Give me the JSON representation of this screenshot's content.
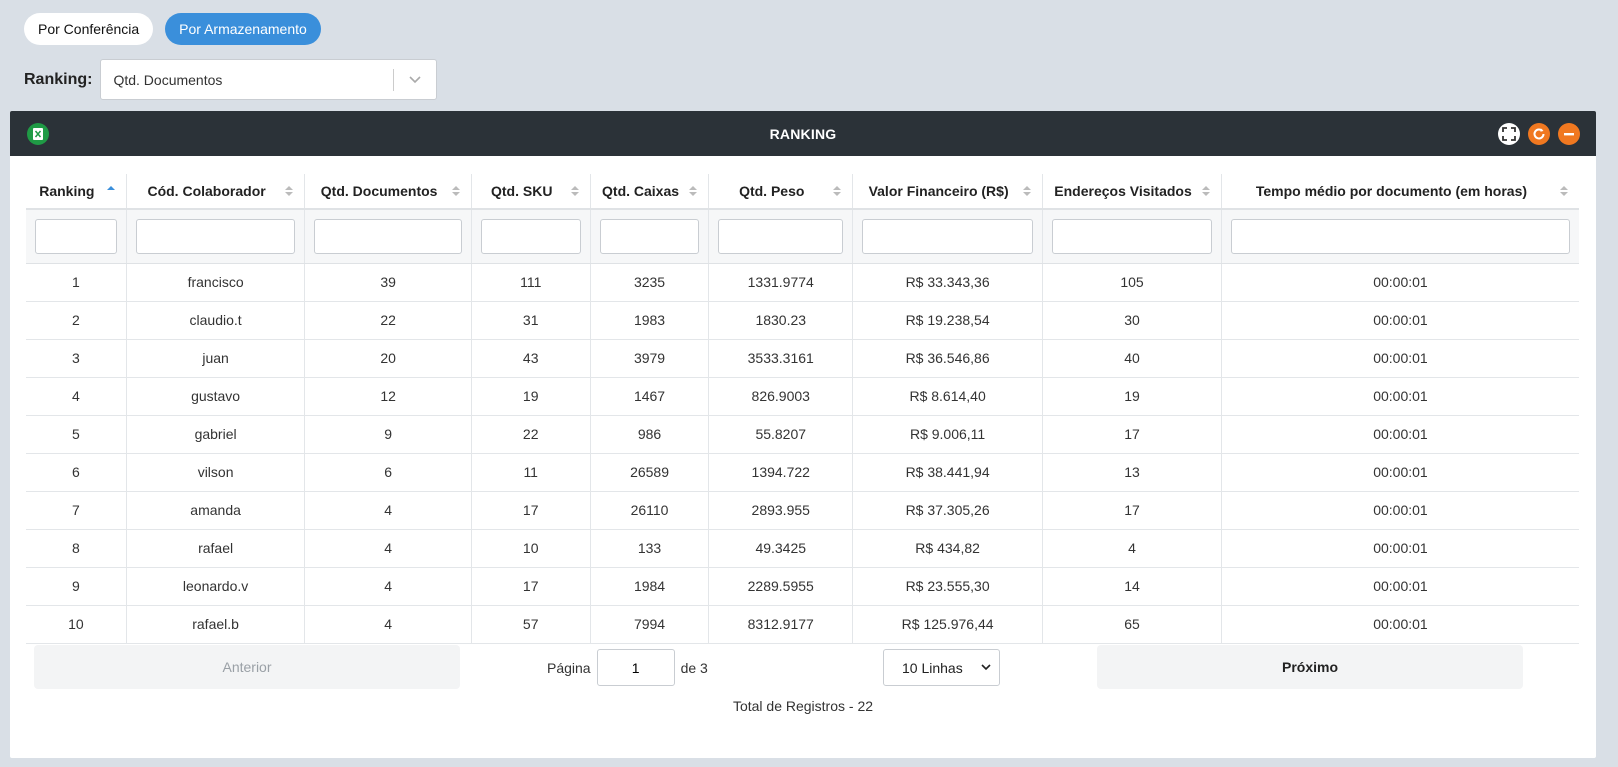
{
  "tabs": [
    {
      "label": "Por Conferência",
      "active": false
    },
    {
      "label": "Por Armazenamento",
      "active": true
    }
  ],
  "ranking_filter": {
    "label": "Ranking:",
    "value": "Qtd. Documentos"
  },
  "panel": {
    "title": "RANKING"
  },
  "table": {
    "columns": [
      "Ranking",
      "Cód. Colaborador",
      "Qtd. Documentos",
      "Qtd. SKU",
      "Qtd. Caixas",
      "Qtd. Peso",
      "Valor Financeiro (R$)",
      "Endereços Visitados",
      "Tempo médio por documento (em horas)"
    ],
    "rows": [
      [
        "1",
        "francisco",
        "39",
        "111",
        "3235",
        "1331.9774",
        "R$ 33.343,36",
        "105",
        "00:00:01"
      ],
      [
        "2",
        "claudio.t",
        "22",
        "31",
        "1983",
        "1830.23",
        "R$ 19.238,54",
        "30",
        "00:00:01"
      ],
      [
        "3",
        "juan",
        "20",
        "43",
        "3979",
        "3533.3161",
        "R$ 36.546,86",
        "40",
        "00:00:01"
      ],
      [
        "4",
        "gustavo",
        "12",
        "19",
        "1467",
        "826.9003",
        "R$ 8.614,40",
        "19",
        "00:00:01"
      ],
      [
        "5",
        "gabriel",
        "9",
        "22",
        "986",
        "55.8207",
        "R$ 9.006,11",
        "17",
        "00:00:01"
      ],
      [
        "6",
        "vilson",
        "6",
        "11",
        "26589",
        "1394.722",
        "R$ 38.441,94",
        "13",
        "00:00:01"
      ],
      [
        "7",
        "amanda",
        "4",
        "17",
        "26110",
        "2893.955",
        "R$ 37.305,26",
        "17",
        "00:00:01"
      ],
      [
        "8",
        "rafael",
        "4",
        "10",
        "133",
        "49.3425",
        "R$ 434,82",
        "4",
        "00:00:01"
      ],
      [
        "9",
        "leonardo.v",
        "4",
        "17",
        "1984",
        "2289.5955",
        "R$ 23.555,30",
        "14",
        "00:00:01"
      ],
      [
        "10",
        "rafael.b",
        "4",
        "57",
        "7994",
        "8312.9177",
        "R$ 125.976,44",
        "65",
        "00:00:01"
      ]
    ]
  },
  "pagination": {
    "prev_label": "Anterior",
    "next_label": "Próximo",
    "page_label": "Página",
    "current_page": "1",
    "of_label": "de 3",
    "rows_option": "10 Linhas",
    "total_label": "Total de Registros - 22"
  },
  "colors": {
    "accent": "#3a8fdb",
    "header_bg": "#2b3238",
    "excel": "#1f9a45",
    "orange": "#f07820"
  }
}
